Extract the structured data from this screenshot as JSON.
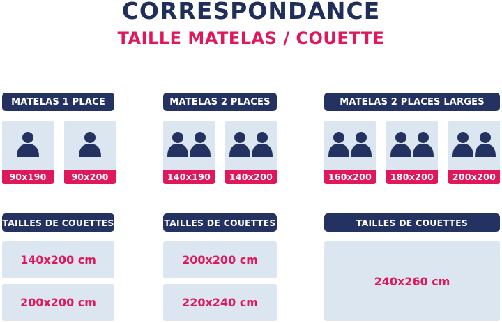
{
  "title": "CORRESPONDANCE",
  "subtitle": "TAILLE MATELAS / COUETTE",
  "colors": {
    "navy": "#243261",
    "pink": "#e0175a",
    "card": "#dbe6f0"
  },
  "groups": [
    {
      "header": "MATELAS 1 PLACE",
      "persons": 1,
      "mattresses": [
        "90x190",
        "90x200"
      ],
      "duvet_header": "TAILLES DE COUETTES",
      "duvets": [
        "140x200 cm",
        "200x200 cm"
      ]
    },
    {
      "header": "MATELAS 2 PLACES",
      "persons": 2,
      "mattresses": [
        "140x190",
        "140x200"
      ],
      "duvet_header": "TAILLES DE COUETTES",
      "duvets": [
        "200x200 cm",
        "220x240 cm"
      ]
    },
    {
      "header": "MATELAS 2 PLACES LARGES",
      "persons": 2,
      "mattresses": [
        "160x200",
        "180x200",
        "200x200"
      ],
      "duvet_header": "TAILLES DE COUETTES",
      "duvets": [
        "240x260 cm"
      ]
    }
  ],
  "icons": {
    "person": "person-icon",
    "couple": "two-persons-icon"
  }
}
